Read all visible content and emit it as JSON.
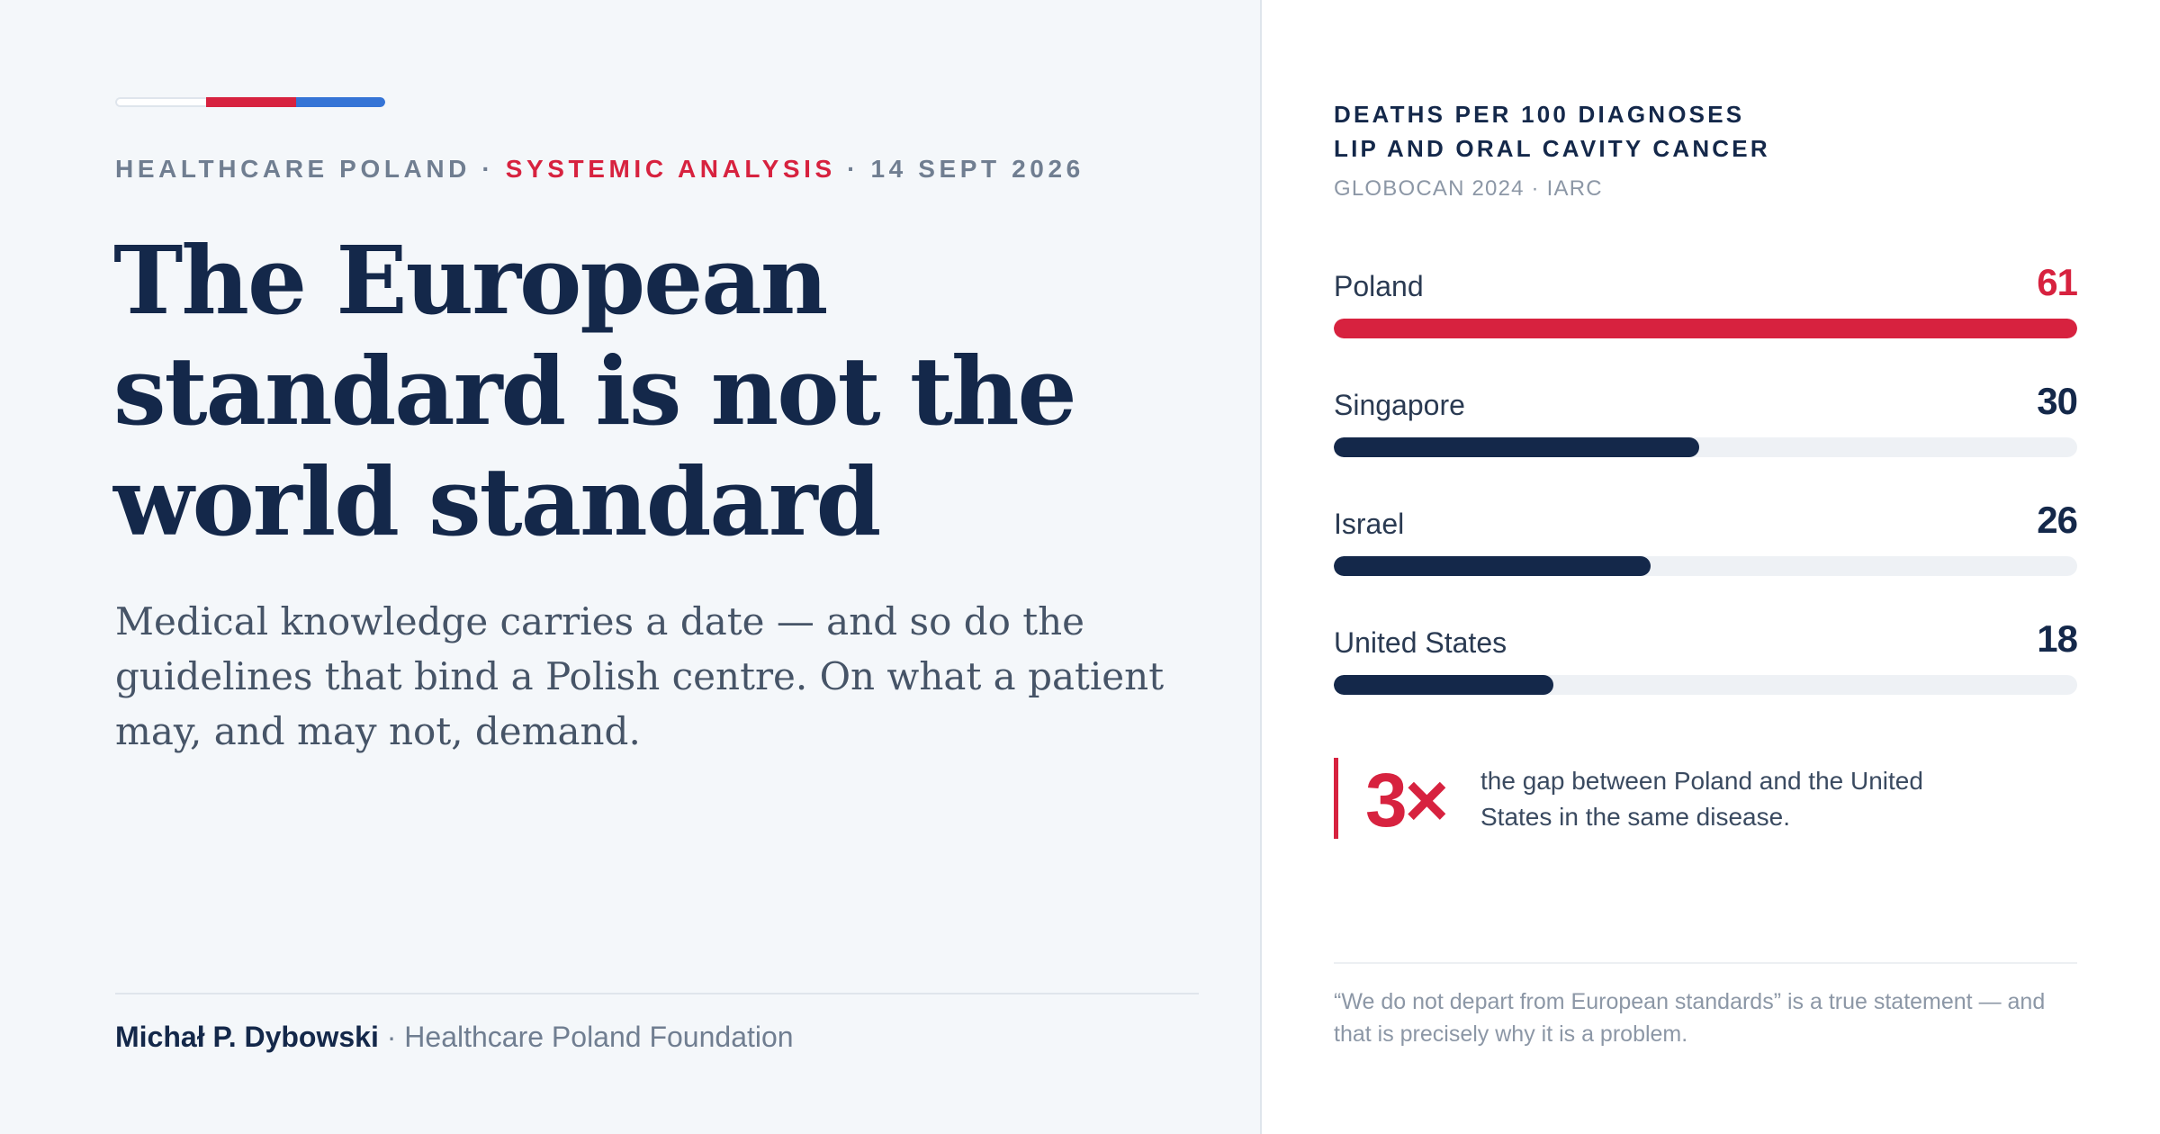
{
  "header": {
    "kicker_brand": "HEALTHCARE POLAND",
    "kicker_sep": " · ",
    "kicker_section": "SYSTEMIC ANALYSIS",
    "kicker_date": "14 SEPT 2026"
  },
  "article": {
    "headline": "The European standard is not the world standard",
    "dek": "Medical knowledge carries a date — and so do the guidelines that bind a Polish centre. On what a patient may, and may not, demand."
  },
  "byline": {
    "author": "Michał P. Dybowski",
    "organization": " · Healthcare Poland Foundation"
  },
  "colors": {
    "accent_red": "#d7223f",
    "accent_blue": "#3574d6",
    "navy": "#14284a"
  },
  "chart_data": {
    "type": "bar",
    "orientation": "horizontal",
    "title_line1": "DEATHS PER 100 DIAGNOSES",
    "title_line2": "LIP AND ORAL CAVITY CANCER",
    "source": "GLOBOCAN 2024 · IARC",
    "categories": [
      "Poland",
      "Singapore",
      "Israel",
      "United States"
    ],
    "values": [
      61,
      30,
      26,
      18
    ],
    "highlight": "Poland",
    "xlim": [
      0,
      61
    ],
    "grid": false,
    "legend": "none"
  },
  "callout": {
    "figure": "3×",
    "text": "the gap between Poland and the United States in the same disease."
  },
  "quote": "“We do not depart from European standards” is a true statement — and that is precisely why it is a problem."
}
